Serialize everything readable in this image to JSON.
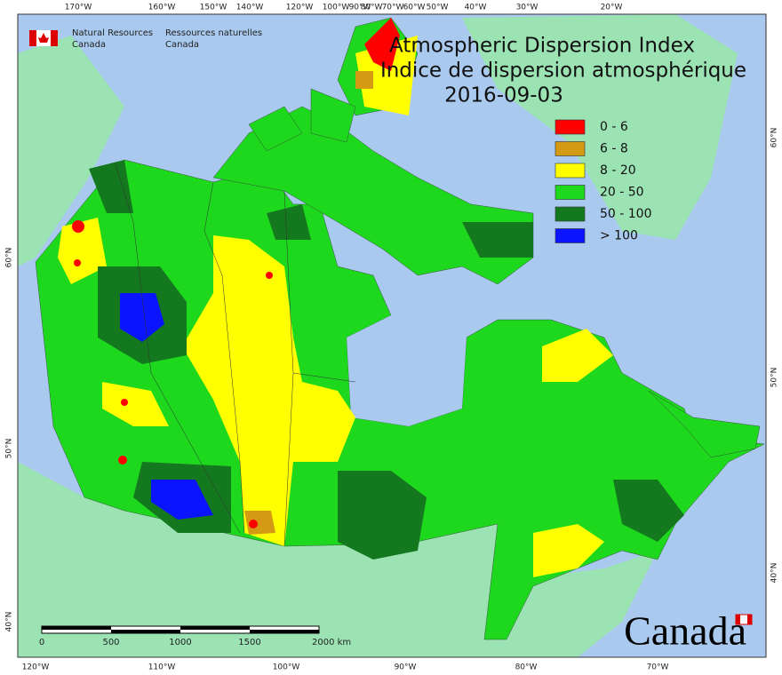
{
  "agency": {
    "en": [
      "Natural Resources",
      "Canada"
    ],
    "fr": [
      "Ressources naturelles",
      "Canada"
    ]
  },
  "title": [
    "Atmospheric Dispersion Index",
    "Indice de dispersion atmosphérique"
  ],
  "date": "2016-09-03",
  "legend": [
    {
      "label": "0 - 6",
      "color": "#ff0000"
    },
    {
      "label": "6 - 8",
      "color": "#d49a14"
    },
    {
      "label": "8 - 20",
      "color": "#ffff00"
    },
    {
      "label": "20 - 50",
      "color": "#1ed81e"
    },
    {
      "label": "50 - 100",
      "color": "#14781e"
    },
    {
      "label": "> 100",
      "color": "#0a14ff"
    }
  ],
  "longitude_top": [
    "170°W",
    "160°W",
    "150°W",
    "140°W",
    "120°W",
    "100°W",
    "90°W",
    "80°W",
    "70°W",
    "60°W",
    "50°W",
    "40°W",
    "30°W",
    "20°W"
  ],
  "longitude_bottom": [
    "120°W",
    "110°W",
    "100°W",
    "90°W",
    "80°W",
    "70°W"
  ],
  "latitude_left": [
    "60°N",
    "50°N",
    "40°N"
  ],
  "latitude_right": [
    "60°N",
    "50°N",
    "40°N"
  ],
  "scale_bar": [
    "0",
    "500",
    "1000",
    "1500",
    "2000  km"
  ],
  "wordmark": "Canada"
}
